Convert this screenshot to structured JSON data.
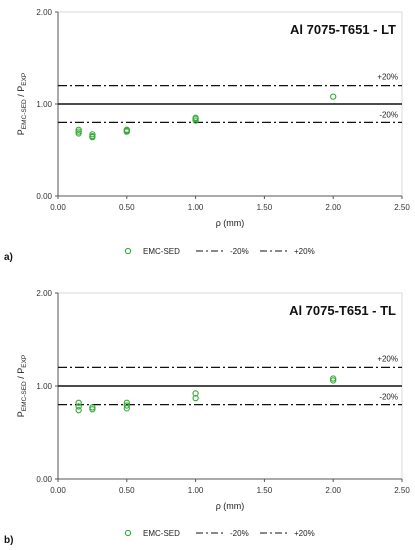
{
  "chart_data": [
    {
      "type": "scatter",
      "panel_label": "a)",
      "title": "Al 7075-T651 - LT",
      "xlabel": "ρ (mm)",
      "ylabel_main": "P",
      "ylabel_sub1": "EMC-SED",
      "ylabel_sep": " / P",
      "ylabel_sub2": "EXP",
      "xlim": [
        0,
        2.5
      ],
      "ylim": [
        0,
        2
      ],
      "xticks": [
        "0.00",
        "0.50",
        "1.00",
        "1.50",
        "2.00",
        "2.50"
      ],
      "yticks": [
        "0.00",
        "1.00",
        "2.00"
      ],
      "grid": false,
      "legend_position": "bottom",
      "reference_lines": [
        {
          "name": "+20%",
          "y": 1.2,
          "style": "dash-dot"
        },
        {
          "name": "",
          "y": 1.0,
          "style": "solid"
        },
        {
          "name": "-20%",
          "y": 0.8,
          "style": "dash-dot"
        }
      ],
      "band_labels": [
        "+20%",
        "-20%"
      ],
      "series": [
        {
          "name": "EMC-SED",
          "color": "#33aa33",
          "x": [
            0.15,
            0.15,
            0.15,
            0.25,
            0.25,
            0.25,
            0.5,
            0.5,
            0.5,
            1.0,
            1.0,
            1.0,
            2.0
          ],
          "y": [
            0.68,
            0.7,
            0.72,
            0.64,
            0.65,
            0.67,
            0.7,
            0.71,
            0.72,
            0.82,
            0.84,
            0.85,
            1.08
          ]
        }
      ],
      "legend": [
        "EMC-SED",
        "-20%",
        "+20%"
      ]
    },
    {
      "type": "scatter",
      "panel_label": "b)",
      "title": "Al 7075-T651 - TL",
      "xlabel": "ρ (mm)",
      "ylabel_main": "P",
      "ylabel_sub1": "EMC-SED",
      "ylabel_sep": " / P",
      "ylabel_sub2": "EXP",
      "xlim": [
        0,
        2.5
      ],
      "ylim": [
        0,
        2
      ],
      "xticks": [
        "0.00",
        "0.50",
        "1.00",
        "1.50",
        "2.00",
        "2.50"
      ],
      "yticks": [
        "0.00",
        "1.00",
        "2.00"
      ],
      "grid": false,
      "legend_position": "bottom",
      "reference_lines": [
        {
          "name": "+20%",
          "y": 1.2,
          "style": "dash-dot"
        },
        {
          "name": "",
          "y": 1.0,
          "style": "solid"
        },
        {
          "name": "-20%",
          "y": 0.8,
          "style": "dash-dot"
        }
      ],
      "band_labels": [
        "+20%",
        "-20%"
      ],
      "series": [
        {
          "name": "EMC-SED",
          "color": "#33aa33",
          "x": [
            0.15,
            0.15,
            0.15,
            0.25,
            0.25,
            0.5,
            0.5,
            0.5,
            1.0,
            1.0,
            2.0,
            2.0
          ],
          "y": [
            0.74,
            0.78,
            0.82,
            0.75,
            0.77,
            0.76,
            0.79,
            0.82,
            0.87,
            0.92,
            1.06,
            1.08
          ]
        }
      ],
      "legend": [
        "EMC-SED",
        "-20%",
        "+20%"
      ]
    }
  ]
}
